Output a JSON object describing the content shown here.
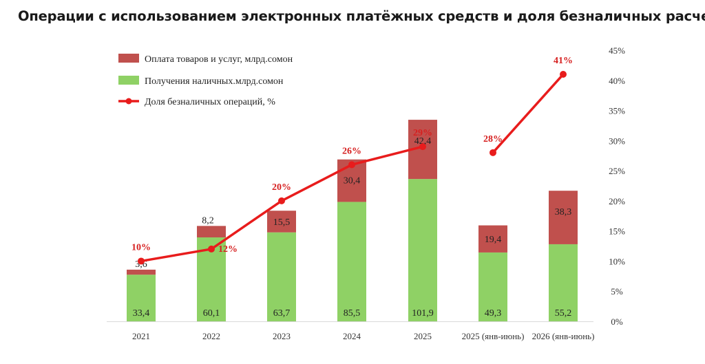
{
  "chart_data": {
    "type": "bar",
    "title": "Операции с использованием электронных платёжных средств и доля безналичных расчетов",
    "categories": [
      "2021",
      "2022",
      "2023",
      "2024",
      "2025",
      "2025 (янв-июнь)",
      "2026 (янв-июнь)"
    ],
    "series": [
      {
        "name": "Получения наличных.млрд.сомон",
        "kind": "bar",
        "stack": "total",
        "color": "#8fd165",
        "values": [
          33.4,
          60.1,
          63.7,
          85.5,
          101.9,
          49.3,
          55.2
        ],
        "labels": [
          "33,4",
          "60,1",
          "63,7",
          "85,5",
          "101,9",
          "49,3",
          "55,2"
        ]
      },
      {
        "name": "Оплата товаров и услуг, млрд.сомон",
        "kind": "bar",
        "stack": "total",
        "color": "#c0504d",
        "values": [
          3.6,
          8.2,
          15.5,
          30.4,
          42.4,
          19.4,
          38.3
        ],
        "labels": [
          "3,6",
          "8,2",
          "15,5",
          "30,4",
          "42,4",
          "19,4",
          "38,3"
        ]
      },
      {
        "name": "Доля безналичных операций, %",
        "kind": "line",
        "axis": "right",
        "color": "#e81c1c",
        "values": [
          10,
          12,
          20,
          26,
          29,
          28,
          41
        ],
        "labels": [
          "10%",
          "12%",
          "20%",
          "26%",
          "29%",
          "28%",
          "41%"
        ],
        "segments": [
          [
            0,
            4
          ],
          [
            5,
            6
          ]
        ]
      }
    ],
    "right_axis": {
      "range": [
        0,
        45
      ],
      "step": 5,
      "tick_labels": [
        "0%",
        "5%",
        "10%",
        "15%",
        "20%",
        "25%",
        "30%",
        "35%",
        "40%",
        "45%"
      ]
    },
    "left_axis": {
      "visible": false,
      "range": [
        0,
        200
      ]
    },
    "legend_position": "top-left",
    "grid": false
  }
}
